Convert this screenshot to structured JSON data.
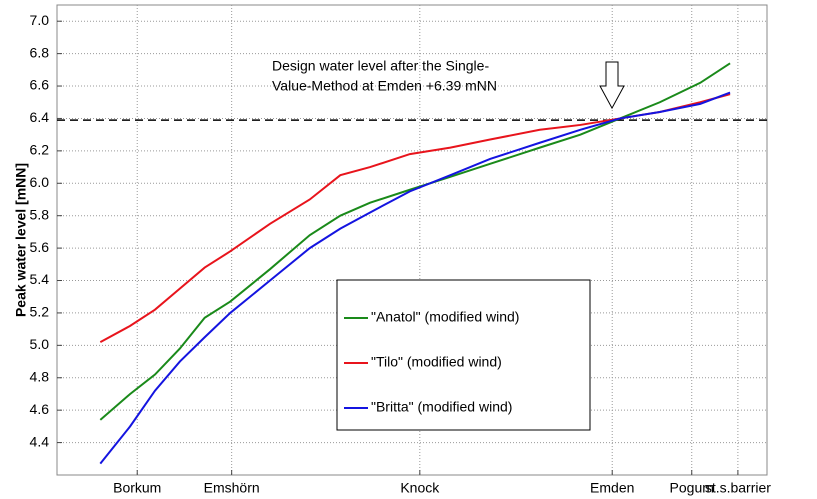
{
  "chart_data": {
    "type": "line",
    "ylabel": "Peak water level  [mNN]",
    "annotation": [
      "Design water level after the Single-",
      "Value-Method at Emden +6.39 mNN"
    ],
    "reference_line": 6.39,
    "x": [
      6.1,
      10.3,
      13.8,
      17.3,
      20.8,
      24.4,
      30.0,
      35.6,
      39.9,
      44.1,
      49.7,
      55.4,
      61.0,
      68.0,
      73.7,
      79.3,
      84.9,
      90.6,
      94.8
    ],
    "series": [
      {
        "name": "\"Anatol\" (modified wind)",
        "color": "#1a8a1a",
        "values": [
          4.54,
          4.7,
          4.82,
          4.98,
          5.17,
          5.27,
          5.47,
          5.68,
          5.8,
          5.88,
          5.96,
          6.04,
          6.12,
          6.22,
          6.3,
          6.4,
          6.5,
          6.62,
          6.74
        ]
      },
      {
        "name": "\"Tilo\" (modified wind)",
        "color": "#e8141c",
        "values": [
          5.02,
          5.12,
          5.22,
          5.35,
          5.48,
          5.58,
          5.75,
          5.9,
          6.05,
          6.1,
          6.18,
          6.22,
          6.27,
          6.33,
          6.36,
          6.4,
          6.44,
          6.5,
          6.55
        ]
      },
      {
        "name": "\"Britta\" (modified wind)",
        "color": "#1414e0",
        "values": [
          4.27,
          4.5,
          4.72,
          4.9,
          5.05,
          5.2,
          5.4,
          5.6,
          5.72,
          5.82,
          5.95,
          6.05,
          6.15,
          6.25,
          6.33,
          6.4,
          6.44,
          6.49,
          6.56
        ]
      }
    ],
    "xlim": [
      0,
      100
    ],
    "xticks": [
      {
        "value": 11.3,
        "label": "Borkum"
      },
      {
        "value": 24.6,
        "label": "Emshörn"
      },
      {
        "value": 51.1,
        "label": "Knock"
      },
      {
        "value": 78.2,
        "label": "Emden"
      },
      {
        "value": 89.4,
        "label": "Pogum"
      },
      {
        "value": 95.9,
        "label": "st.s.barrier"
      }
    ],
    "ylim": [
      4.2,
      7.1
    ],
    "yticks": [
      4.4,
      4.6,
      4.8,
      {
        "value": 5.0,
        "label": "5.0"
      },
      5.2,
      5.4,
      5.6,
      5.8,
      {
        "value": 6.0,
        "label": "6.0"
      },
      6.2,
      6.4,
      6.6,
      6.8,
      {
        "value": 7.0,
        "label": "7.0"
      }
    ],
    "grid": true
  }
}
